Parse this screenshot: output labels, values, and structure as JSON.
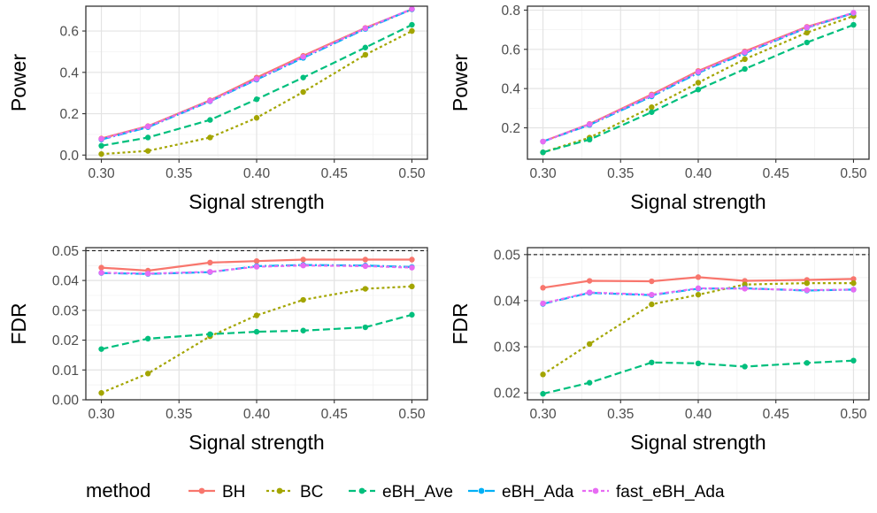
{
  "chart_data": [
    {
      "type": "line",
      "xlabel": "Signal strength",
      "ylabel": "Power",
      "x": [
        0.3,
        0.33,
        0.37,
        0.4,
        0.43,
        0.47,
        0.5
      ],
      "xlim": [
        0.29,
        0.51
      ],
      "ylim": [
        -0.02,
        0.72
      ],
      "xticks": [
        "0.30",
        "0.35",
        "0.40",
        "0.45",
        "0.50"
      ],
      "yticks": [
        "0.0",
        "0.2",
        "0.4",
        "0.6"
      ],
      "grid": true,
      "series": [
        {
          "name": "BH",
          "values": [
            0.08,
            0.14,
            0.265,
            0.375,
            0.48,
            0.615,
            0.705
          ]
        },
        {
          "name": "BC",
          "values": [
            0.005,
            0.02,
            0.085,
            0.18,
            0.305,
            0.485,
            0.6
          ]
        },
        {
          "name": "eBH_Ave",
          "values": [
            0.045,
            0.085,
            0.17,
            0.27,
            0.375,
            0.52,
            0.63
          ]
        },
        {
          "name": "eBH_Ada",
          "values": [
            0.075,
            0.135,
            0.26,
            0.365,
            0.47,
            0.61,
            0.705
          ]
        },
        {
          "name": "fast_eBH_Ada",
          "values": [
            0.078,
            0.138,
            0.262,
            0.368,
            0.475,
            0.613,
            0.707
          ]
        }
      ]
    },
    {
      "type": "line",
      "xlabel": "Signal strength",
      "ylabel": "Power",
      "x": [
        0.3,
        0.33,
        0.37,
        0.4,
        0.43,
        0.47,
        0.5
      ],
      "xlim": [
        0.29,
        0.51
      ],
      "ylim": [
        0.04,
        0.82
      ],
      "xticks": [
        "0.30",
        "0.35",
        "0.40",
        "0.45",
        "0.50"
      ],
      "yticks": [
        "0.2",
        "0.4",
        "0.6",
        "0.8"
      ],
      "grid": true,
      "series": [
        {
          "name": "BH",
          "values": [
            0.13,
            0.22,
            0.37,
            0.49,
            0.59,
            0.715,
            0.785
          ]
        },
        {
          "name": "BC",
          "values": [
            0.075,
            0.15,
            0.305,
            0.43,
            0.55,
            0.685,
            0.77
          ]
        },
        {
          "name": "eBH_Ave",
          "values": [
            0.075,
            0.14,
            0.28,
            0.395,
            0.5,
            0.635,
            0.725
          ]
        },
        {
          "name": "eBH_Ada",
          "values": [
            0.13,
            0.215,
            0.36,
            0.48,
            0.58,
            0.71,
            0.785
          ]
        },
        {
          "name": "fast_eBH_Ada",
          "values": [
            0.13,
            0.218,
            0.365,
            0.485,
            0.585,
            0.712,
            0.787
          ]
        }
      ]
    },
    {
      "type": "line",
      "xlabel": "Signal strength",
      "ylabel": "FDR",
      "x": [
        0.3,
        0.33,
        0.37,
        0.4,
        0.43,
        0.47,
        0.5
      ],
      "xlim": [
        0.29,
        0.51
      ],
      "ylim": [
        0.0,
        0.051
      ],
      "xticks": [
        "0.30",
        "0.35",
        "0.40",
        "0.45",
        "0.50"
      ],
      "yticks": [
        "0.00",
        "0.01",
        "0.02",
        "0.03",
        "0.04",
        "0.05"
      ],
      "reference_line": 0.05,
      "grid": true,
      "series": [
        {
          "name": "BH",
          "values": [
            0.0443,
            0.0433,
            0.046,
            0.0465,
            0.047,
            0.047,
            0.047
          ]
        },
        {
          "name": "BC",
          "values": [
            0.0023,
            0.0088,
            0.0213,
            0.0283,
            0.0335,
            0.0372,
            0.038
          ]
        },
        {
          "name": "eBH_Ave",
          "values": [
            0.017,
            0.0205,
            0.022,
            0.0228,
            0.0232,
            0.0243,
            0.0285
          ]
        },
        {
          "name": "eBH_Ada",
          "values": [
            0.0425,
            0.0422,
            0.0428,
            0.0448,
            0.0452,
            0.045,
            0.0445
          ]
        },
        {
          "name": "fast_eBH_Ada",
          "values": [
            0.0426,
            0.0423,
            0.0429,
            0.0446,
            0.045,
            0.0448,
            0.0443
          ]
        }
      ]
    },
    {
      "type": "line",
      "xlabel": "Signal strength",
      "ylabel": "FDR",
      "x": [
        0.3,
        0.33,
        0.37,
        0.4,
        0.43,
        0.47,
        0.5
      ],
      "xlim": [
        0.29,
        0.51
      ],
      "ylim": [
        0.0185,
        0.0515
      ],
      "xticks": [
        "0.30",
        "0.35",
        "0.40",
        "0.45",
        "0.50"
      ],
      "yticks": [
        "0.02",
        "0.03",
        "0.04",
        "0.05"
      ],
      "reference_line": 0.05,
      "grid": true,
      "series": [
        {
          "name": "BH",
          "values": [
            0.0428,
            0.0443,
            0.0442,
            0.0451,
            0.0443,
            0.0445,
            0.0447
          ]
        },
        {
          "name": "BC",
          "values": [
            0.024,
            0.0306,
            0.0392,
            0.0413,
            0.0435,
            0.0438,
            0.0438
          ]
        },
        {
          "name": "eBH_Ave",
          "values": [
            0.0198,
            0.0222,
            0.0266,
            0.0264,
            0.0257,
            0.0265,
            0.027
          ]
        },
        {
          "name": "eBH_Ada",
          "values": [
            0.0393,
            0.0417,
            0.0412,
            0.0426,
            0.0427,
            0.0422,
            0.0424
          ]
        },
        {
          "name": "fast_eBH_Ada",
          "values": [
            0.0394,
            0.0418,
            0.0413,
            0.0427,
            0.0426,
            0.0423,
            0.0424
          ]
        }
      ]
    }
  ],
  "legend": {
    "title": "method",
    "placement": "bottom",
    "items": [
      "BH",
      "BC",
      "eBH_Ave",
      "eBH_Ada",
      "fast_eBH_Ada"
    ]
  },
  "colors": {
    "BH": "#F8766D",
    "BC": "#A3A500",
    "eBH_Ave": "#00BF7D",
    "eBH_Ada": "#00B0F6",
    "fast_eBH_Ada": "#E76BF3"
  },
  "dashes": {
    "BH": "",
    "BC": "3,3",
    "eBH_Ave": "8,4",
    "eBH_Ada": "11,3,2,3",
    "fast_eBH_Ada": "4,3"
  }
}
